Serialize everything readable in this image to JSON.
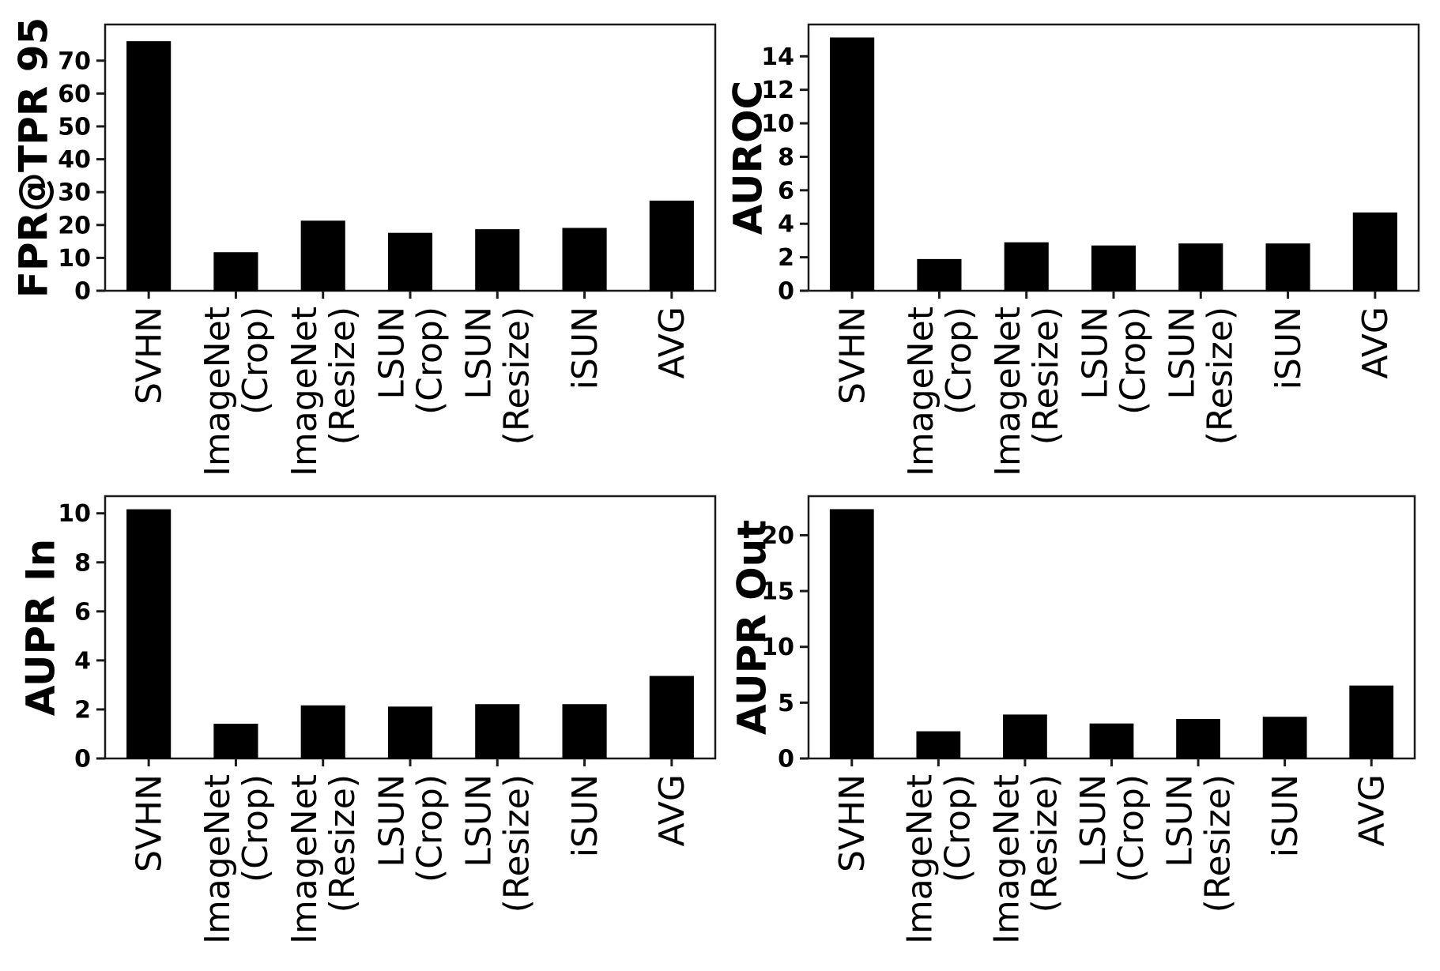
{
  "figure": {
    "background": "#ffffff",
    "bar_color": "#000000",
    "axis_color": "#1a1a1a",
    "text_color": "#000000"
  },
  "chart_data": [
    {
      "type": "bar",
      "title": "",
      "ylabel": "FPR@TPR 95",
      "xlabel": "",
      "categories": [
        "SVHN",
        "ImageNet\n(Crop)",
        "ImageNet\n(Resize)",
        "LSUN\n(Crop)",
        "LSUN\n(Resize)",
        "iSUN",
        "AVG"
      ],
      "values": [
        75.8,
        11.6,
        21.2,
        17.5,
        18.6,
        19.0,
        27.3
      ],
      "yticks": [
        0,
        10,
        20,
        30,
        40,
        50,
        60,
        70
      ],
      "ylim": [
        0,
        81
      ],
      "grid": false,
      "legend": null
    },
    {
      "type": "bar",
      "title": "",
      "ylabel": "AUROC",
      "xlabel": "",
      "categories": [
        "SVHN",
        "ImageNet\n(Crop)",
        "ImageNet\n(Resize)",
        "LSUN\n(Crop)",
        "LSUN\n(Resize)",
        "iSUN",
        "AVG"
      ],
      "values": [
        15.1,
        1.87,
        2.87,
        2.68,
        2.8,
        2.8,
        4.65
      ],
      "yticks": [
        0,
        2,
        4,
        6,
        8,
        10,
        12,
        14
      ],
      "ylim": [
        0,
        15.9
      ],
      "grid": false,
      "legend": null
    },
    {
      "type": "bar",
      "title": "",
      "ylabel": "AUPR In",
      "xlabel": "",
      "categories": [
        "SVHN",
        "ImageNet\n(Crop)",
        "ImageNet\n(Resize)",
        "LSUN\n(Crop)",
        "LSUN\n(Resize)",
        "iSUN",
        "AVG"
      ],
      "values": [
        10.15,
        1.4,
        2.15,
        2.1,
        2.2,
        2.2,
        3.35
      ],
      "yticks": [
        0,
        2,
        4,
        6,
        8,
        10
      ],
      "ylim": [
        0,
        10.7
      ],
      "grid": false,
      "legend": null
    },
    {
      "type": "bar",
      "title": "",
      "ylabel": "AUPR Out",
      "xlabel": "",
      "categories": [
        "SVHN",
        "ImageNet\n(Crop)",
        "ImageNet\n(Resize)",
        "LSUN\n(Crop)",
        "LSUN\n(Resize)",
        "iSUN",
        "AVG"
      ],
      "values": [
        22.3,
        2.4,
        3.9,
        3.1,
        3.5,
        3.7,
        6.5
      ],
      "yticks": [
        0,
        5,
        10,
        15,
        20
      ],
      "ylim": [
        0,
        23.5
      ],
      "grid": false,
      "legend": null
    }
  ]
}
